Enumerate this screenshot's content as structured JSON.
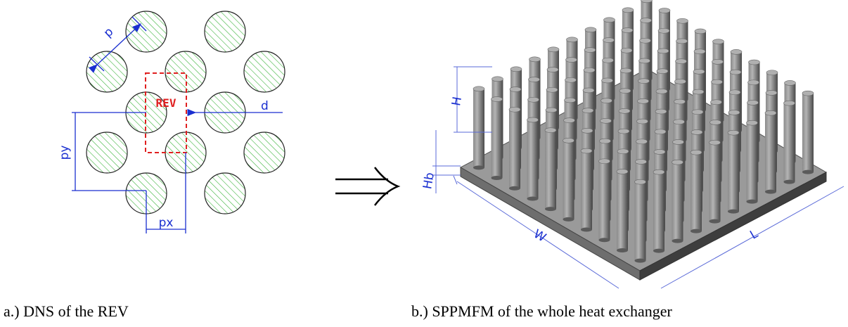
{
  "left_diagram": {
    "p": "p",
    "rev": "REV",
    "d": "d",
    "py": "py",
    "px": "px"
  },
  "right_diagram": {
    "h": "H",
    "hb": "Hb",
    "w": "W",
    "l": "L"
  },
  "captions": {
    "a": "a.) DNS of the REV",
    "b": "b.) SPPMFM of the whole heat exchanger"
  }
}
